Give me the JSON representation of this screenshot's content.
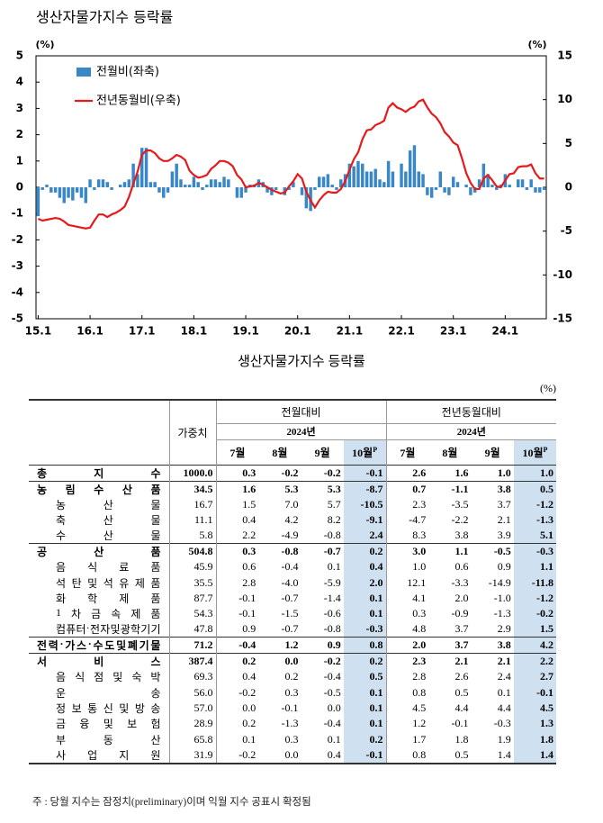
{
  "chart_data": {
    "type": "bar",
    "title": "생산자물가지수 등락률",
    "ylabel": "(%)",
    "y2label": "(%)",
    "ylim": [
      -5,
      5
    ],
    "yticks": [
      -5,
      -4,
      -3,
      -2,
      -1,
      0,
      1,
      2,
      3,
      4,
      5
    ],
    "y2lim": [
      -15,
      15
    ],
    "y2ticks": [
      -15,
      -10,
      -5,
      0,
      5,
      10,
      15
    ],
    "legend": "upper left",
    "categories": [
      "15.1",
      null,
      null,
      null,
      null,
      null,
      null,
      null,
      null,
      null,
      null,
      null,
      "16.1",
      null,
      null,
      null,
      null,
      null,
      null,
      null,
      null,
      null,
      null,
      null,
      "17.1",
      null,
      null,
      null,
      null,
      null,
      null,
      null,
      null,
      null,
      null,
      null,
      "18.1",
      null,
      null,
      null,
      null,
      null,
      null,
      null,
      null,
      null,
      null,
      null,
      "19.1",
      null,
      null,
      null,
      null,
      null,
      null,
      null,
      null,
      null,
      null,
      null,
      "20.1",
      null,
      null,
      null,
      null,
      null,
      null,
      null,
      null,
      null,
      null,
      null,
      "21.1",
      null,
      null,
      null,
      null,
      null,
      null,
      null,
      null,
      null,
      null,
      null,
      "22.1",
      null,
      null,
      null,
      null,
      null,
      null,
      null,
      null,
      null,
      null,
      null,
      "23.1",
      null,
      null,
      null,
      null,
      null,
      null,
      null,
      null,
      null,
      null,
      null,
      "24.1",
      null,
      null,
      null,
      null,
      null,
      null,
      null,
      null,
      null
    ],
    "series": [
      {
        "name": "전월비(좌축)",
        "type": "bar",
        "color": "#3a87c8",
        "values": [
          -1.1,
          -0.1,
          0.1,
          -0.2,
          -0.2,
          -0.4,
          -0.6,
          -0.4,
          -0.5,
          -0.2,
          -0.4,
          -0.6,
          0.3,
          -0.1,
          0.3,
          0.3,
          0.2,
          -0.1,
          0.0,
          0.1,
          0.2,
          0.3,
          0.9,
          0.5,
          1.5,
          1.5,
          0.2,
          0.2,
          -0.2,
          -0.4,
          -0.2,
          0.6,
          0.9,
          0.3,
          0.1,
          0.1,
          0.4,
          0.2,
          -0.1,
          0.1,
          0.3,
          0.3,
          0.2,
          0.4,
          0.3,
          0.0,
          -0.4,
          -0.4,
          -0.2,
          0.1,
          0.1,
          0.3,
          0.2,
          -0.2,
          -0.3,
          -0.1,
          0.0,
          -0.3,
          -0.1,
          0.2,
          0.0,
          -0.3,
          -0.8,
          -0.9,
          -0.1,
          0.4,
          0.4,
          0.5,
          0.1,
          -0.1,
          0.3,
          0.5,
          0.9,
          0.8,
          1.0,
          0.9,
          0.6,
          0.6,
          0.7,
          0.3,
          0.2,
          1.0,
          0.6,
          0.0,
          0.9,
          0.6,
          1.4,
          1.6,
          0.6,
          0.5,
          -0.3,
          -0.4,
          -0.1,
          0.6,
          -0.2,
          -0.3,
          0.4,
          0.2,
          0.0,
          0.1,
          -0.3,
          -0.2,
          0.3,
          0.9,
          0.5,
          0.1,
          -0.1,
          0.1,
          0.5,
          0.1,
          0.0,
          0.3,
          0.3,
          -0.1,
          0.3,
          -0.2,
          -0.2,
          -0.1
        ]
      },
      {
        "name": "전년동월비(우축)",
        "type": "line",
        "color": "#e41a1c",
        "axis": "y2",
        "values": [
          -3.6,
          -3.8,
          -3.7,
          -3.6,
          -3.5,
          -3.6,
          -3.9,
          -4.3,
          -4.4,
          -4.5,
          -4.6,
          -4.7,
          -4.6,
          -3.8,
          -3.1,
          -3.1,
          -3.4,
          -3.1,
          -2.9,
          -2.6,
          -2.2,
          -1.1,
          0.4,
          1.8,
          3.7,
          4.2,
          4.2,
          3.9,
          3.3,
          3.0,
          3.0,
          3.3,
          3.7,
          3.5,
          3.1,
          1.9,
          1.4,
          1.1,
          1.2,
          1.4,
          2.1,
          2.5,
          3.0,
          3.0,
          2.8,
          2.4,
          1.4,
          0.9,
          0.0,
          0.1,
          0.2,
          0.5,
          0.3,
          0.0,
          -0.3,
          -0.5,
          -0.7,
          -0.6,
          0.1,
          0.7,
          1.5,
          1.0,
          -0.5,
          -1.5,
          -2.3,
          -1.5,
          -0.9,
          -0.5,
          -0.6,
          -0.6,
          -0.2,
          0.7,
          2.0,
          3.2,
          4.0,
          5.5,
          6.5,
          6.6,
          7.1,
          7.3,
          7.6,
          9.1,
          9.6,
          9.1,
          8.9,
          8.6,
          9.0,
          9.2,
          9.8,
          10.0,
          9.1,
          8.4,
          8.0,
          7.3,
          6.3,
          5.8,
          5.1,
          4.8,
          3.3,
          1.6,
          0.5,
          -0.2,
          -0.2,
          1.0,
          1.4,
          0.8,
          0.1,
          0.0,
          0.8,
          1.5,
          1.6,
          2.3,
          2.4,
          2.4,
          2.6,
          1.6,
          1.0,
          1.0
        ]
      }
    ]
  },
  "table": {
    "title": "생산자물가지수 등락률",
    "unit": "(%)",
    "header": {
      "weight": "가중치",
      "groups": [
        "전월대비",
        "전년동월대비"
      ],
      "year": "2024년",
      "months": [
        "7월",
        "8월",
        "9월",
        "10월"
      ],
      "prelim": "P"
    },
    "rows": [
      {
        "label": "총지수",
        "weight": "1000.0",
        "values": [
          "0.3",
          "-0.2",
          "-0.2",
          "-0.1",
          "2.6",
          "1.6",
          "1.0",
          "1.0"
        ],
        "bold": true
      },
      {
        "label": "농림수산품",
        "weight": "34.5",
        "values": [
          "1.6",
          "5.3",
          "5.3",
          "-8.7",
          "0.7",
          "-1.1",
          "3.8",
          "0.5"
        ],
        "bold": true
      },
      {
        "label": "농산물",
        "weight": "16.7",
        "values": [
          "1.5",
          "7.0",
          "5.7",
          "-10.5",
          "2.3",
          "-3.5",
          "3.7",
          "-1.2"
        ],
        "bold": false
      },
      {
        "label": "축산물",
        "weight": "11.1",
        "values": [
          "0.4",
          "4.2",
          "8.2",
          "-9.1",
          "-4.7",
          "-2.2",
          "2.1",
          "-1.3"
        ],
        "bold": false
      },
      {
        "label": "수산물",
        "weight": "5.8",
        "values": [
          "2.2",
          "-4.9",
          "-0.8",
          "2.4",
          "8.3",
          "3.8",
          "3.9",
          "5.1"
        ],
        "bold": false
      },
      {
        "label": "공산품",
        "weight": "504.8",
        "values": [
          "0.3",
          "-0.8",
          "-0.7",
          "0.2",
          "3.0",
          "1.1",
          "-0.5",
          "-0.3"
        ],
        "bold": true
      },
      {
        "label": "음식료품",
        "weight": "45.9",
        "values": [
          "0.6",
          "-0.4",
          "0.1",
          "0.4",
          "1.0",
          "0.6",
          "0.9",
          "1.1"
        ],
        "bold": false
      },
      {
        "label": "석탄및석유제품",
        "weight": "35.5",
        "values": [
          "2.8",
          "-4.0",
          "-5.9",
          "2.0",
          "12.1",
          "-3.3",
          "-14.9",
          "-11.8"
        ],
        "bold": false
      },
      {
        "label": "화학제품",
        "weight": "87.7",
        "values": [
          "-0.1",
          "-0.7",
          "-1.4",
          "0.1",
          "4.1",
          "2.0",
          "-1.0",
          "-1.2"
        ],
        "bold": false
      },
      {
        "label": "1차금속제품",
        "weight": "54.3",
        "values": [
          "-0.1",
          "-1.5",
          "-0.6",
          "0.1",
          "0.3",
          "-0.9",
          "-1.3",
          "-0.2"
        ],
        "bold": false
      },
      {
        "label": "컴퓨터·전자및광학기기",
        "weight": "47.8",
        "values": [
          "0.9",
          "-0.7",
          "-0.8",
          "-0.3",
          "4.8",
          "3.7",
          "2.9",
          "1.5"
        ],
        "bold": false
      },
      {
        "label": "전력·가스·수도및폐기물",
        "weight": "71.2",
        "values": [
          "-0.4",
          "1.2",
          "0.9",
          "0.8",
          "2.0",
          "3.7",
          "3.8",
          "4.2"
        ],
        "bold": true
      },
      {
        "label": "서비스",
        "weight": "387.4",
        "values": [
          "0.2",
          "0.0",
          "-0.2",
          "0.2",
          "2.3",
          "2.1",
          "2.1",
          "2.2"
        ],
        "bold": true
      },
      {
        "label": "음식점및숙박",
        "weight": "69.3",
        "values": [
          "0.4",
          "0.2",
          "-0.4",
          "0.5",
          "2.8",
          "2.6",
          "2.4",
          "2.7"
        ],
        "bold": false
      },
      {
        "label": "운송",
        "weight": "56.0",
        "values": [
          "-0.2",
          "0.3",
          "-0.5",
          "0.1",
          "0.8",
          "0.5",
          "0.1",
          "-0.1"
        ],
        "bold": false
      },
      {
        "label": "정보통신및방송",
        "weight": "57.0",
        "values": [
          "0.0",
          "-0.1",
          "0.0",
          "0.1",
          "4.5",
          "4.4",
          "4.4",
          "4.5"
        ],
        "bold": false
      },
      {
        "label": "금융및보험",
        "weight": "28.9",
        "values": [
          "0.2",
          "-1.3",
          "-0.4",
          "0.1",
          "1.2",
          "-0.1",
          "-0.3",
          "1.3"
        ],
        "bold": false
      },
      {
        "label": "부동산",
        "weight": "65.8",
        "values": [
          "0.1",
          "0.3",
          "0.1",
          "0.2",
          "1.7",
          "1.8",
          "1.9",
          "1.8"
        ],
        "bold": false
      },
      {
        "label": "사업지원",
        "weight": "31.9",
        "values": [
          "-0.2",
          "0.0",
          "0.4",
          "-0.1",
          "0.8",
          "0.5",
          "1.4",
          "1.4"
        ],
        "bold": false
      }
    ],
    "note": "주 : 당월 지수는 잠정치(preliminary)이며 익월 지수 공표시 확정됨"
  }
}
